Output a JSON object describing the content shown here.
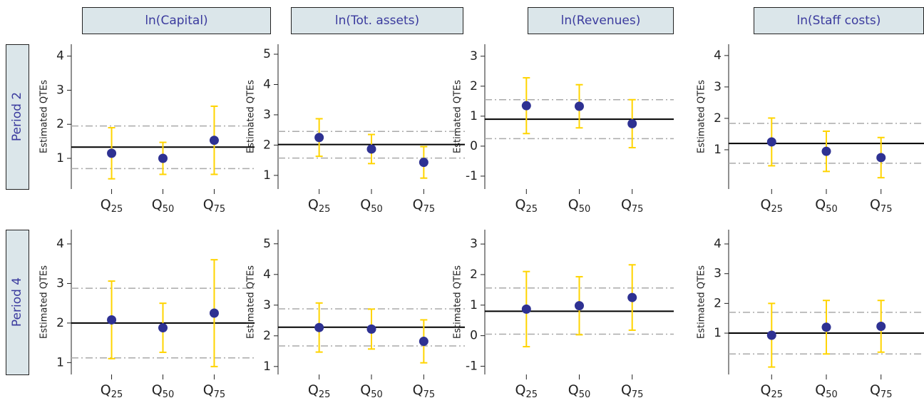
{
  "columns": [
    "ln(Capital)",
    "ln(Tot. assets)",
    "ln(Revenues)",
    "ln(Staff costs)"
  ],
  "rows": [
    "Period 2",
    "Period 4"
  ],
  "chart_data": [
    {
      "type": "errorbar",
      "ylabel": "Estimated QTEs",
      "categories": [
        "Q25",
        "Q50",
        "Q75"
      ],
      "values": [
        1.15,
        1.0,
        1.53
      ],
      "errors": [
        0.75,
        0.47,
        1.0
      ],
      "ylim": [
        0.1,
        4.35
      ],
      "yticks": [
        1,
        2,
        3,
        4
      ],
      "reference": 1.33,
      "band": [
        0.7,
        1.95
      ],
      "color": "#2e3192",
      "error_color": "#ffd400",
      "reference_color": "#000000",
      "band_color": "#aaaaaa"
    },
    {
      "type": "errorbar",
      "ylabel": "Estimated QTEs",
      "categories": [
        "Q25",
        "Q50",
        "Q75"
      ],
      "values": [
        2.25,
        1.87,
        1.43
      ],
      "errors": [
        0.62,
        0.48,
        0.52
      ],
      "ylim": [
        0.55,
        5.33
      ],
      "yticks": [
        1,
        2,
        3,
        4,
        5
      ],
      "reference": 2.02,
      "band": [
        1.57,
        2.45
      ],
      "color": "#2e3192",
      "error_color": "#ffd400",
      "reference_color": "#000000",
      "band_color": "#aaaaaa"
    },
    {
      "type": "errorbar",
      "ylabel": "Estimated QTEs",
      "categories": [
        "Q25",
        "Q50",
        "Q75"
      ],
      "values": [
        1.35,
        1.33,
        0.75
      ],
      "errors": [
        0.93,
        0.72,
        0.8
      ],
      "ylim": [
        -1.43,
        3.4
      ],
      "yticks": [
        -1,
        0,
        1,
        2,
        3
      ],
      "reference": 0.9,
      "band": [
        0.25,
        1.55
      ],
      "color": "#2e3192",
      "error_color": "#ffd400",
      "reference_color": "#000000",
      "band_color": "#aaaaaa"
    },
    {
      "type": "errorbar",
      "ylabel": "Estimated QTEs",
      "categories": [
        "Q25",
        "Q50",
        "Q75"
      ],
      "values": [
        1.25,
        0.95,
        0.75
      ],
      "errors": [
        0.76,
        0.64,
        0.64
      ],
      "ylim": [
        -0.25,
        4.36
      ],
      "yticks": [
        1,
        2,
        3,
        4
      ],
      "reference": 1.2,
      "band": [
        0.57,
        1.84
      ],
      "color": "#2e3192",
      "error_color": "#ffd400",
      "reference_color": "#000000",
      "band_color": "#aaaaaa"
    },
    {
      "type": "errorbar",
      "ylabel": "Estimated QTEs",
      "categories": [
        "Q25",
        "Q50",
        "Q75"
      ],
      "values": [
        2.08,
        1.88,
        2.25
      ],
      "errors": [
        0.98,
        0.62,
        1.35
      ],
      "ylim": [
        0.7,
        4.36
      ],
      "yticks": [
        1,
        2,
        3,
        4
      ],
      "reference": 2.0,
      "band": [
        1.12,
        2.88
      ],
      "color": "#2e3192",
      "error_color": "#ffd400",
      "reference_color": "#000000",
      "band_color": "#aaaaaa"
    },
    {
      "type": "errorbar",
      "ylabel": "Estimated QTEs",
      "categories": [
        "Q25",
        "Q50",
        "Q75"
      ],
      "values": [
        2.27,
        2.22,
        1.82
      ],
      "errors": [
        0.8,
        0.65,
        0.7
      ],
      "ylim": [
        0.74,
        5.46
      ],
      "yticks": [
        1,
        2,
        3,
        4,
        5
      ],
      "reference": 2.28,
      "band": [
        1.67,
        2.88
      ],
      "color": "#2e3192",
      "error_color": "#ffd400",
      "reference_color": "#000000",
      "band_color": "#aaaaaa"
    },
    {
      "type": "errorbar",
      "ylabel": "Estimated QTEs",
      "categories": [
        "Q25",
        "Q50",
        "Q75"
      ],
      "values": [
        0.87,
        0.98,
        1.25
      ],
      "errors": [
        1.23,
        0.95,
        1.07
      ],
      "ylim": [
        -1.27,
        3.47
      ],
      "yticks": [
        -1,
        0,
        1,
        2,
        3
      ],
      "reference": 0.8,
      "band": [
        0.05,
        1.56
      ],
      "color": "#2e3192",
      "error_color": "#ffd400",
      "reference_color": "#000000",
      "band_color": "#aaaaaa"
    },
    {
      "type": "errorbar",
      "ylabel": "Estimated QTEs",
      "categories": [
        "Q25",
        "Q50",
        "Q75"
      ],
      "values": [
        0.93,
        1.2,
        1.23
      ],
      "errors": [
        1.07,
        0.9,
        0.87
      ],
      "ylim": [
        -0.39,
        4.48
      ],
      "yticks": [
        1,
        2,
        3,
        4
      ],
      "reference": 1.0,
      "band": [
        0.3,
        1.7
      ],
      "color": "#2e3192",
      "error_color": "#ffd400",
      "reference_color": "#000000",
      "band_color": "#aaaaaa"
    }
  ]
}
